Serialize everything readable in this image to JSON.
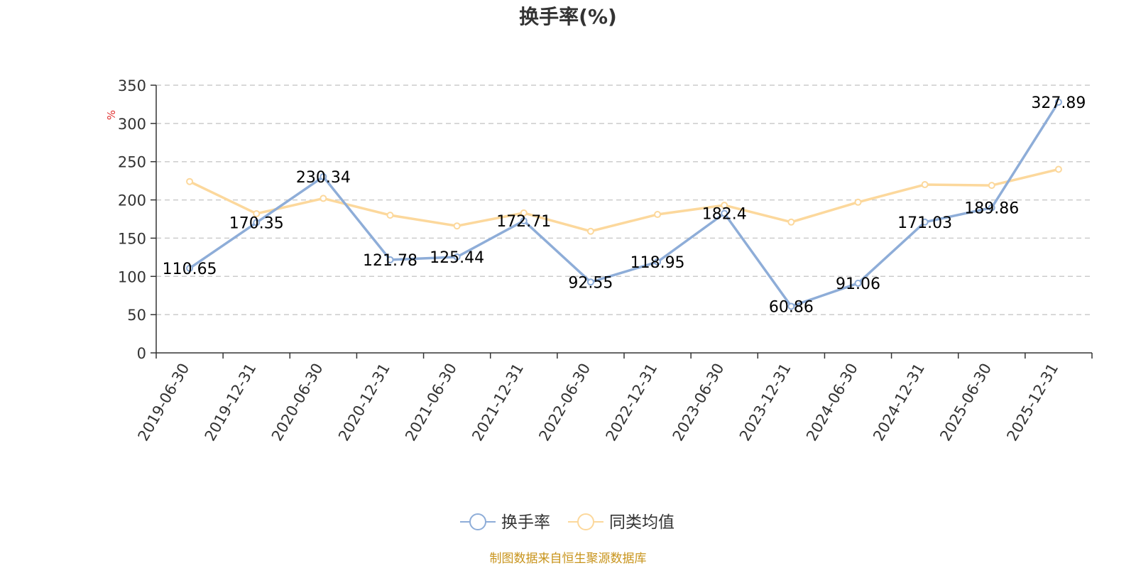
{
  "chart_data": {
    "type": "line",
    "title": "换手率(%)",
    "ylabel": "%",
    "ylim": [
      0,
      350
    ],
    "yticks": [
      0,
      50,
      100,
      150,
      200,
      250,
      300,
      350
    ],
    "grid": true,
    "legend_position": "bottom-center",
    "categories": [
      "2019-06-30",
      "2019-12-31",
      "2020-06-30",
      "2020-12-31",
      "2021-06-30",
      "2021-12-31",
      "2022-06-30",
      "2022-12-31",
      "2023-06-30",
      "2023-12-31",
      "2024-06-30",
      "2024-12-31",
      "2025-06-30",
      "2025-12-31"
    ],
    "series": [
      {
        "name": "换手率",
        "color": "#8eadd8",
        "values": [
          110.65,
          170.35,
          230.34,
          121.78,
          125.44,
          172.71,
          92.55,
          118.95,
          182.4,
          60.86,
          91.06,
          171.03,
          189.86,
          327.89
        ],
        "labels": [
          "110.65",
          "170.35",
          "230.34",
          "121.78",
          "125.44",
          "172.71",
          "92.55",
          "118.95",
          "182.4",
          "60.86",
          "91.06",
          "171.03",
          "189.86",
          "327.89"
        ]
      },
      {
        "name": "同类均值",
        "color": "#fcd89c",
        "values": [
          224,
          182,
          202,
          180,
          166,
          183,
          159,
          181,
          193,
          171,
          197,
          220,
          219,
          240
        ]
      }
    ]
  },
  "source": "制图数据来自恒生聚源数据库",
  "colors": {
    "axis": "#333333",
    "grid": "#cccccc",
    "unit": "#e03030",
    "source": "#c8941c"
  }
}
